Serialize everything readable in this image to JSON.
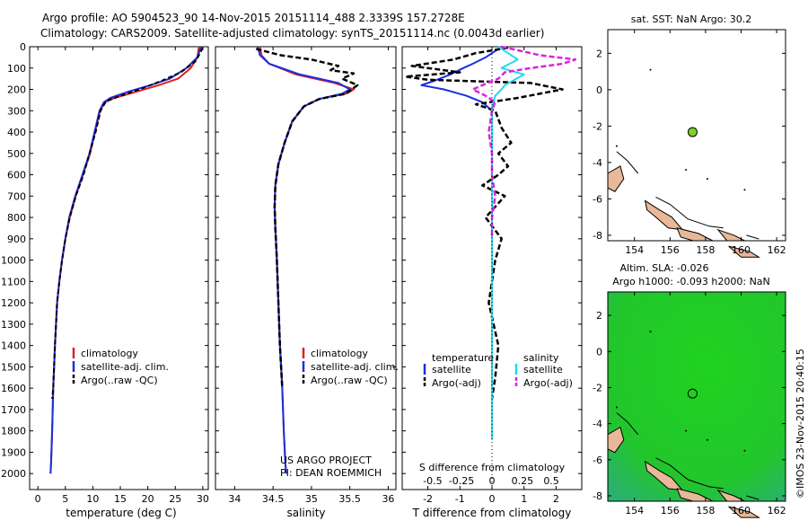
{
  "header": {
    "line1": "Argo profile: AO 5904523_90 14-Nov-2015 20151114_488 2.3339S 157.2728E",
    "line2": "Climatology: CARS2009. Satellite-adjusted climatology: synTS_20151114.nc (0.0043d earlier)"
  },
  "colors": {
    "climatology": "#e02020",
    "satellite": "#1a2ee0",
    "argo": "#000000",
    "salinity_satellite": "#22d8f0",
    "salinity_argo": "#e020e0",
    "land": "#e8b898",
    "sla_field": "#22cc22"
  },
  "chart_data": [
    {
      "type": "line",
      "id": "temperature",
      "xlabel": "temperature (deg C)",
      "xlim": [
        -1.5,
        31
      ],
      "ylim": [
        2075,
        0
      ],
      "xticks": [
        0,
        5,
        10,
        15,
        20,
        25,
        30
      ],
      "yticks": [
        0,
        100,
        200,
        300,
        400,
        500,
        600,
        700,
        800,
        900,
        1000,
        1100,
        1200,
        1300,
        1400,
        1500,
        1600,
        1700,
        1800,
        1900,
        2000
      ],
      "legend": [
        "climatology",
        "satellite-adj. clim.",
        "Argo(..raw -QC)"
      ],
      "series": [
        {
          "name": "climatology",
          "x": [
            29.3,
            29.0,
            27.8,
            25.5,
            22.0,
            18.0,
            14.0,
            12.2,
            11.3,
            10.4,
            9.5,
            8.2,
            6.9,
            5.8,
            5.0,
            4.4,
            3.9,
            3.5,
            3.1,
            2.8,
            2.6,
            2.4,
            2.3
          ],
          "y": [
            0,
            50,
            100,
            150,
            180,
            210,
            240,
            260,
            300,
            400,
            500,
            600,
            700,
            800,
            900,
            1000,
            1100,
            1200,
            1400,
            1600,
            1800,
            1950,
            2000
          ]
        },
        {
          "name": "satellite-adj. clim.",
          "x": [
            29.7,
            29.0,
            27.0,
            24.0,
            20.5,
            16.5,
            13.2,
            12.0,
            11.2,
            10.3,
            9.4,
            8.1,
            6.8,
            5.7,
            5.0,
            4.4,
            3.9,
            3.5,
            3.1,
            2.8,
            2.6,
            2.4,
            2.3
          ],
          "y": [
            0,
            50,
            100,
            150,
            180,
            210,
            240,
            260,
            300,
            400,
            500,
            600,
            700,
            800,
            900,
            1000,
            1100,
            1200,
            1400,
            1600,
            1800,
            1950,
            2000
          ]
        },
        {
          "name": "Argo(..raw -QC)",
          "x": [
            30.0,
            29.3,
            28.6,
            26.0,
            22.5,
            18.5,
            14.5,
            12.4,
            11.4,
            10.5,
            9.4,
            8.3,
            6.9,
            5.8,
            5.0,
            4.4,
            3.9,
            3.5,
            3.1,
            2.8,
            2.6
          ],
          "y": [
            5,
            40,
            70,
            120,
            160,
            200,
            235,
            255,
            300,
            400,
            500,
            600,
            700,
            800,
            900,
            1000,
            1100,
            1200,
            1400,
            1600,
            1650
          ]
        }
      ]
    },
    {
      "type": "line",
      "id": "salinity",
      "xlabel": "salinity",
      "xlim": [
        33.75,
        36.1
      ],
      "ylim": [
        2075,
        0
      ],
      "xticks": [
        34,
        34.5,
        35,
        35.5,
        36
      ],
      "legend": [
        "climatology",
        "satellite-adj. clim.",
        "Argo(..raw -QC)"
      ],
      "annotation": [
        "US ARGO PROJECT",
        "PI: DEAN ROEMMICH"
      ],
      "series": [
        {
          "name": "climatology",
          "x": [
            34.33,
            34.35,
            34.45,
            34.8,
            35.3,
            35.55,
            35.45,
            35.1,
            34.9,
            34.75,
            34.65,
            34.57,
            34.53,
            34.52,
            34.53,
            34.55,
            34.57,
            34.59,
            34.62,
            34.64,
            34.66,
            34.67
          ],
          "y": [
            0,
            40,
            80,
            130,
            170,
            200,
            220,
            245,
            280,
            350,
            450,
            550,
            650,
            750,
            850,
            1000,
            1200,
            1400,
            1600,
            1800,
            1950,
            2000
          ]
        },
        {
          "name": "satellite-adj. clim.",
          "x": [
            34.3,
            34.33,
            34.45,
            34.85,
            35.35,
            35.5,
            35.4,
            35.1,
            34.9,
            34.75,
            34.65,
            34.57,
            34.53,
            34.52,
            34.53,
            34.55,
            34.57,
            34.59,
            34.62,
            34.64,
            34.66,
            34.67
          ],
          "y": [
            0,
            40,
            80,
            130,
            170,
            200,
            220,
            245,
            280,
            350,
            450,
            550,
            650,
            750,
            850,
            1000,
            1200,
            1400,
            1600,
            1800,
            1950,
            2000
          ]
        },
        {
          "name": "Argo(..raw -QC)",
          "x": [
            34.28,
            34.6,
            35.0,
            35.35,
            35.25,
            35.55,
            35.4,
            35.6,
            35.45,
            35.1,
            34.9,
            34.75,
            34.65,
            34.57,
            34.53,
            34.52,
            34.53,
            34.55,
            34.57,
            34.59,
            34.62
          ],
          "y": [
            10,
            40,
            60,
            90,
            110,
            125,
            150,
            180,
            220,
            245,
            280,
            350,
            450,
            550,
            650,
            750,
            850,
            1000,
            1200,
            1400,
            1600
          ]
        }
      ]
    },
    {
      "type": "line",
      "id": "difference",
      "xlabel": "T difference from climatology",
      "xlabel_top": "S difference from climatology",
      "xlim": [
        -2.8,
        2.8
      ],
      "ylim": [
        2075,
        0
      ],
      "xticks_T": [
        -2,
        -1,
        0,
        1,
        2
      ],
      "xticks_S": [
        "-0.5",
        "-0.25",
        "0",
        "0.25",
        "0.5"
      ],
      "legend_temperature": {
        "title": "temperature",
        "entries": [
          "satellite",
          "Argo(-adj)"
        ]
      },
      "legend_salinity": {
        "title": "salinity",
        "entries": [
          "satellite",
          "Argo(-adj)"
        ]
      },
      "series": [
        {
          "name": "T satellite",
          "x": [
            0.3,
            -0.2,
            -0.6,
            -0.9,
            -1.3,
            -1.8,
            -2.2,
            -1.5,
            -0.8,
            -0.3,
            0,
            0,
            0,
            0,
            0,
            0,
            0,
            0,
            0,
            0
          ],
          "y": [
            0,
            50,
            80,
            100,
            130,
            160,
            180,
            200,
            230,
            260,
            300,
            400,
            600,
            800,
            1000,
            1200,
            1400,
            1600,
            1800,
            1840
          ]
        },
        {
          "name": "T Argo(-adj)",
          "x": [
            0.5,
            -0.5,
            -1.2,
            -2.5,
            -1.0,
            -2.7,
            -2.0,
            1.2,
            2.2,
            0.8,
            -0.5,
            0.1,
            0.3,
            0.6,
            0.2,
            0.5,
            0.2,
            -0.3,
            0.4,
            -0.2,
            0.3,
            0.1,
            -0.1,
            0.2,
            0.1,
            0
          ],
          "y": [
            5,
            30,
            60,
            90,
            120,
            140,
            155,
            170,
            200,
            240,
            270,
            300,
            380,
            450,
            500,
            560,
            600,
            650,
            700,
            800,
            900,
            1000,
            1200,
            1400,
            1550,
            1650
          ]
        },
        {
          "name": "S satellite",
          "x": [
            0.2,
            0.5,
            0.8,
            0.3,
            1.0,
            0.4,
            0.3,
            0.1,
            0,
            0,
            0,
            0,
            0,
            0,
            0,
            0,
            0,
            0,
            0
          ],
          "y": [
            0,
            30,
            60,
            100,
            130,
            180,
            200,
            230,
            280,
            350,
            500,
            700,
            900,
            1100,
            1300,
            1500,
            1700,
            1800,
            1840
          ]
        },
        {
          "name": "S Argo(-adj)",
          "x": [
            0.3,
            1.5,
            2.6,
            2.2,
            1.2,
            0.4,
            0.2,
            -0.3,
            -0.6,
            -0.2,
            0.1,
            0,
            -0.1,
            0,
            0,
            0.1,
            0,
            0
          ],
          "y": [
            0,
            40,
            60,
            80,
            100,
            120,
            150,
            180,
            200,
            230,
            260,
            300,
            400,
            500,
            600,
            700,
            800,
            900
          ]
        }
      ]
    },
    {
      "type": "scatter",
      "id": "map-sst",
      "title": "sat. SST: NaN Argo: 30.2",
      "xlim": [
        152.5,
        162.5
      ],
      "ylim": [
        -8.3,
        3.3
      ],
      "xticks": [
        154,
        156,
        158,
        160,
        162
      ],
      "yticks": [
        2,
        0,
        -2,
        -4,
        -6,
        -8
      ],
      "points": [
        {
          "lon": 157.27,
          "lat": -2.33
        }
      ]
    },
    {
      "type": "heatmap",
      "id": "map-sla",
      "title_line1": "Altim. SLA: -0.026",
      "title_line2": "Argo h1000: -0.093 h2000: NaN",
      "xlim": [
        152.5,
        162.5
      ],
      "ylim": [
        -8.3,
        3.3
      ],
      "xticks": [
        154,
        156,
        158,
        160,
        162
      ],
      "yticks": [
        2,
        0,
        -2,
        -4,
        -6,
        -8
      ],
      "points": [
        {
          "lon": 157.27,
          "lat": -2.33
        }
      ]
    }
  ],
  "credit": "©IMOS 23-Nov-2015 20:40:15"
}
